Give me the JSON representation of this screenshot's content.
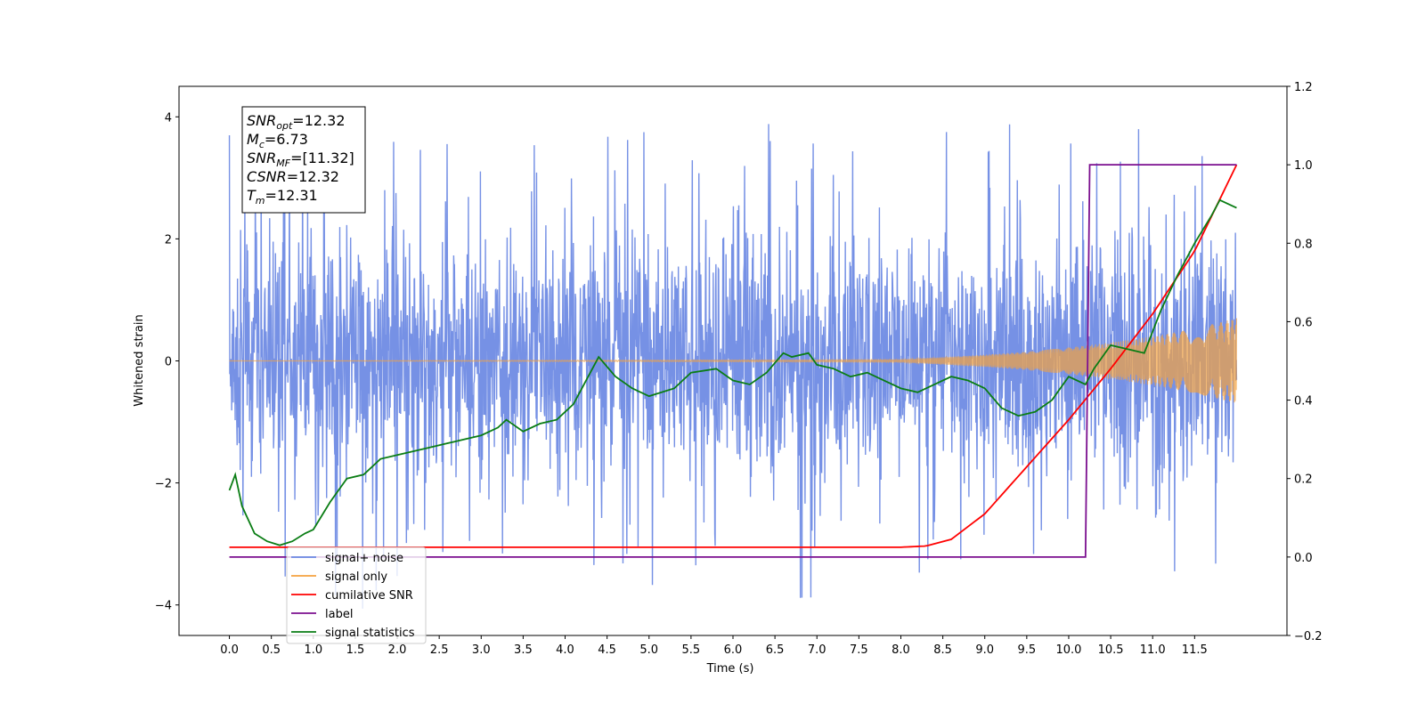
{
  "chart_data": {
    "type": "line",
    "xlabel": "Time (s)",
    "ylabel": "Whitened strain",
    "xlim": [
      -0.6,
      12.6
    ],
    "ylim": [
      -4.5,
      4.5
    ],
    "y2lim": [
      -0.2,
      1.2
    ],
    "x_ticks": [
      "0.0",
      "0.5",
      "1.0",
      "1.5",
      "2.0",
      "2.5",
      "3.0",
      "3.5",
      "4.0",
      "4.5",
      "5.0",
      "5.5",
      "6.0",
      "6.5",
      "7.0",
      "7.5",
      "8.0",
      "8.5",
      "9.0",
      "9.5",
      "10.0",
      "10.5",
      "11.0",
      "11.5"
    ],
    "y_ticks": [
      "4",
      "2",
      "0",
      "−2",
      "−4"
    ],
    "y2_ticks": [
      "1.2",
      "1.0",
      "0.8",
      "0.6",
      "0.4",
      "0.2",
      "0.0",
      "−0.2"
    ],
    "legend_position": "lower-left",
    "annotation": {
      "lines": [
        {
          "key": "SNR",
          "sub": "opt",
          "value": "=12.32"
        },
        {
          "key": "M",
          "sub": "c",
          "value": "=6.73"
        },
        {
          "key": "SNR",
          "sub": "MF",
          "value": "=[11.32]"
        },
        {
          "key": "CSNR",
          "sub": "",
          "value": "=12.32"
        },
        {
          "key": "T",
          "sub": "m",
          "value": "=12.31"
        }
      ]
    },
    "series": [
      {
        "name": "signal+ noise",
        "axis": "left",
        "color": "#6a88e3",
        "style": "noise",
        "duration": 12.0,
        "sigma": 1.0,
        "peak_max": 4.1,
        "peak_min": -4.1
      },
      {
        "name": "signal only",
        "axis": "left",
        "color": "#f4a340",
        "style": "chirp",
        "envelope_x": [
          0.0,
          8.0,
          8.5,
          9.0,
          9.5,
          10.0,
          10.5,
          11.0,
          11.5,
          12.0
        ],
        "envelope_y": [
          0.0,
          0.02,
          0.06,
          0.1,
          0.15,
          0.22,
          0.3,
          0.4,
          0.53,
          0.7
        ]
      },
      {
        "name": "cumilative SNR",
        "axis": "right",
        "color": "#ff0000",
        "x": [
          0.0,
          8.0,
          8.3,
          8.6,
          9.0,
          9.5,
          10.0,
          10.5,
          11.0,
          11.5,
          12.0
        ],
        "y": [
          0.025,
          0.025,
          0.028,
          0.045,
          0.11,
          0.23,
          0.35,
          0.48,
          0.62,
          0.78,
          1.0
        ]
      },
      {
        "name": "label",
        "axis": "right",
        "color": "#7b0f8f",
        "x": [
          0.0,
          10.2,
          10.25,
          12.0
        ],
        "y": [
          0.0,
          0.0,
          1.0,
          1.0
        ]
      },
      {
        "name": "signal statistics",
        "axis": "right",
        "color": "#0a7d14",
        "x": [
          0.0,
          0.07,
          0.15,
          0.3,
          0.45,
          0.6,
          0.75,
          0.9,
          1.0,
          1.2,
          1.4,
          1.6,
          1.8,
          2.0,
          2.2,
          2.4,
          2.6,
          2.8,
          3.0,
          3.2,
          3.3,
          3.5,
          3.7,
          3.9,
          4.1,
          4.3,
          4.4,
          4.6,
          4.8,
          5.0,
          5.3,
          5.5,
          5.8,
          6.0,
          6.2,
          6.4,
          6.6,
          6.7,
          6.9,
          7.0,
          7.2,
          7.4,
          7.6,
          7.8,
          8.0,
          8.2,
          8.4,
          8.6,
          8.8,
          9.0,
          9.2,
          9.4,
          9.6,
          9.8,
          10.0,
          10.2,
          10.3,
          10.5,
          10.7,
          10.9,
          11.1,
          11.3,
          11.5,
          11.7,
          11.8,
          12.0
        ],
        "y": [
          0.17,
          0.21,
          0.13,
          0.06,
          0.04,
          0.03,
          0.04,
          0.06,
          0.07,
          0.14,
          0.2,
          0.21,
          0.25,
          0.26,
          0.27,
          0.28,
          0.29,
          0.3,
          0.31,
          0.33,
          0.35,
          0.32,
          0.34,
          0.35,
          0.39,
          0.47,
          0.51,
          0.46,
          0.43,
          0.41,
          0.43,
          0.47,
          0.48,
          0.45,
          0.44,
          0.47,
          0.52,
          0.51,
          0.52,
          0.49,
          0.48,
          0.46,
          0.47,
          0.45,
          0.43,
          0.42,
          0.44,
          0.46,
          0.45,
          0.43,
          0.38,
          0.36,
          0.37,
          0.4,
          0.46,
          0.44,
          0.48,
          0.54,
          0.53,
          0.52,
          0.63,
          0.72,
          0.8,
          0.87,
          0.91,
          0.89
        ]
      }
    ]
  }
}
